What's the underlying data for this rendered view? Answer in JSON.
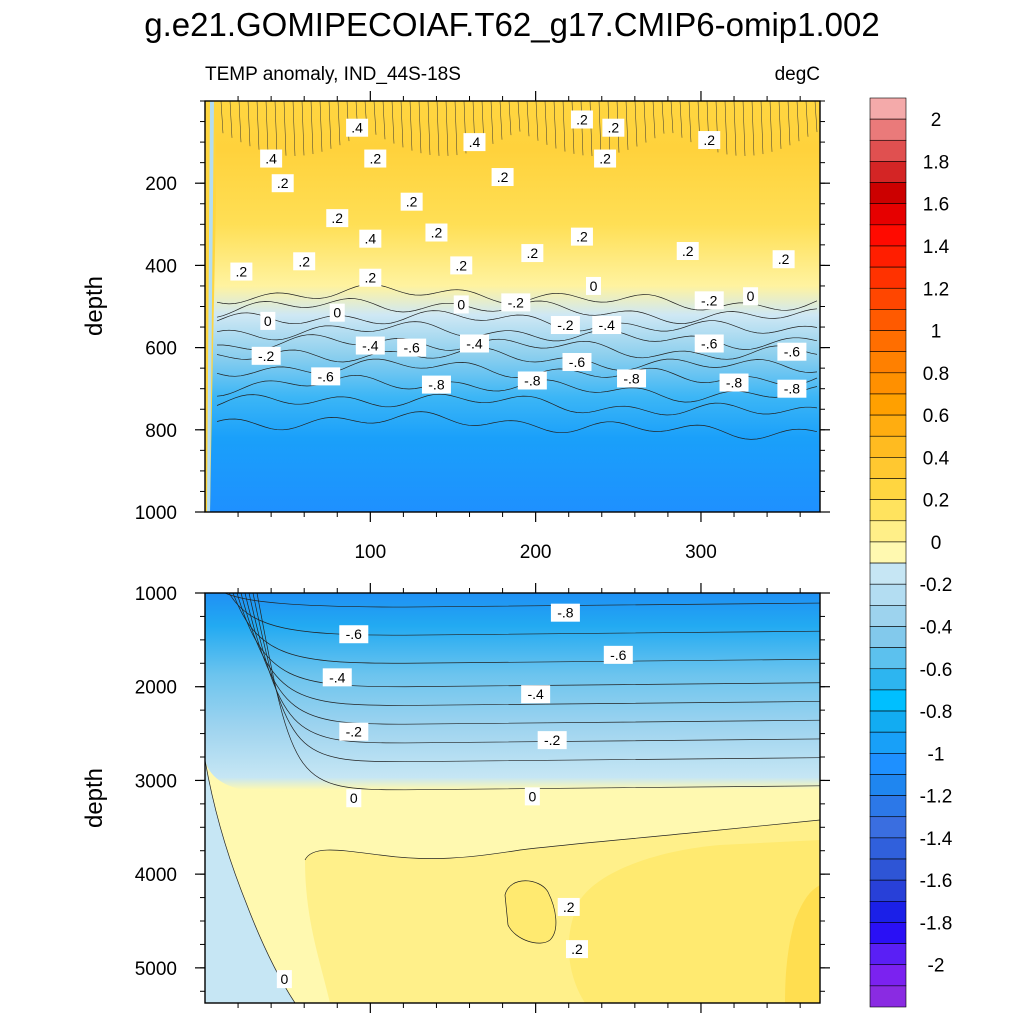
{
  "chart_data": {
    "type": "heatmap",
    "title": "g.e21.GOMIPECOIAF.T62_g17.CMIP6-omip1.002",
    "subtitle_left": "TEMP anomaly, IND_44S-18S",
    "subtitle_right": "degC",
    "x_range": [
      0,
      372
    ],
    "x_ticks": [
      "100",
      "200",
      "300"
    ],
    "x_tick_values": [
      100,
      200,
      300
    ],
    "panels": [
      {
        "name": "upper",
        "ylabel": "depth",
        "y_range": [
          0,
          1000
        ],
        "y_ticks": [
          "200",
          "400",
          "600",
          "800",
          "1000"
        ],
        "y_tick_values": [
          200,
          400,
          600,
          800,
          1000
        ],
        "contour_labels": [
          {
            "text": ".4",
            "x": 92,
            "y": 65
          },
          {
            "text": ".2",
            "x": 103,
            "y": 140
          },
          {
            "text": ".4",
            "x": 163,
            "y": 100
          },
          {
            "text": ".2",
            "x": 228,
            "y": 45
          },
          {
            "text": ".2",
            "x": 247,
            "y": 65
          },
          {
            "text": ".2",
            "x": 305,
            "y": 95
          },
          {
            "text": ".4",
            "x": 40,
            "y": 140
          },
          {
            "text": ".2",
            "x": 47,
            "y": 200
          },
          {
            "text": ".2",
            "x": 80,
            "y": 285
          },
          {
            "text": ".2",
            "x": 125,
            "y": 245
          },
          {
            "text": ".2",
            "x": 180,
            "y": 185
          },
          {
            "text": ".2",
            "x": 242,
            "y": 140
          },
          {
            "text": ".2",
            "x": 140,
            "y": 320
          },
          {
            "text": ".4",
            "x": 100,
            "y": 335
          },
          {
            "text": ".2",
            "x": 22,
            "y": 415
          },
          {
            "text": ".2",
            "x": 60,
            "y": 390
          },
          {
            "text": ".2",
            "x": 100,
            "y": 430
          },
          {
            "text": ".2",
            "x": 155,
            "y": 400
          },
          {
            "text": ".2",
            "x": 198,
            "y": 370
          },
          {
            "text": ".2",
            "x": 228,
            "y": 330
          },
          {
            "text": ".2",
            "x": 292,
            "y": 365
          },
          {
            "text": ".2",
            "x": 350,
            "y": 385
          },
          {
            "text": "0",
            "x": 38,
            "y": 535
          },
          {
            "text": "0",
            "x": 80,
            "y": 515
          },
          {
            "text": "0",
            "x": 155,
            "y": 495
          },
          {
            "text": "0",
            "x": 235,
            "y": 450
          },
          {
            "text": "0",
            "x": 330,
            "y": 475
          },
          {
            "text": "-.2",
            "x": 188,
            "y": 490
          },
          {
            "text": "-.2",
            "x": 37,
            "y": 620
          },
          {
            "text": "-.2",
            "x": 218,
            "y": 545
          },
          {
            "text": "-.2",
            "x": 305,
            "y": 485
          },
          {
            "text": "-.4",
            "x": 100,
            "y": 595
          },
          {
            "text": "-.4",
            "x": 163,
            "y": 590
          },
          {
            "text": "-.4",
            "x": 243,
            "y": 545
          },
          {
            "text": "-.6",
            "x": 125,
            "y": 600
          },
          {
            "text": "-.6",
            "x": 73,
            "y": 670
          },
          {
            "text": "-.6",
            "x": 225,
            "y": 635
          },
          {
            "text": "-.6",
            "x": 305,
            "y": 590
          },
          {
            "text": "-.6",
            "x": 355,
            "y": 610
          },
          {
            "text": "-.8",
            "x": 140,
            "y": 690
          },
          {
            "text": "-.8",
            "x": 198,
            "y": 680
          },
          {
            "text": "-.8",
            "x": 258,
            "y": 675
          },
          {
            "text": "-.8",
            "x": 320,
            "y": 685
          },
          {
            "text": "-.8",
            "x": 355,
            "y": 700
          }
        ]
      },
      {
        "name": "lower",
        "ylabel": "depth",
        "y_range": [
          1000,
          5375
        ],
        "y_ticks": [
          "1000",
          "2000",
          "3000",
          "4000",
          "5000"
        ],
        "y_tick_values": [
          1000,
          2000,
          3000,
          4000,
          5000
        ],
        "contour_labels": [
          {
            "text": "-.8",
            "x": 218,
            "y": 1210
          },
          {
            "text": "-.6",
            "x": 90,
            "y": 1440
          },
          {
            "text": "-.6",
            "x": 250,
            "y": 1660
          },
          {
            "text": "-.4",
            "x": 80,
            "y": 1900
          },
          {
            "text": "-.4",
            "x": 200,
            "y": 2080
          },
          {
            "text": "-.2",
            "x": 90,
            "y": 2480
          },
          {
            "text": "-.2",
            "x": 210,
            "y": 2570
          },
          {
            "text": "0",
            "x": 90,
            "y": 3190
          },
          {
            "text": "0",
            "x": 198,
            "y": 3170
          },
          {
            "text": ".2",
            "x": 220,
            "y": 4350
          },
          {
            "text": ".2",
            "x": 225,
            "y": 4800
          },
          {
            "text": "0",
            "x": 48,
            "y": 5120
          }
        ]
      }
    ],
    "colorbar": {
      "levels": [
        -2.1,
        -2,
        -1.9,
        -1.8,
        -1.7,
        -1.6,
        -1.5,
        -1.4,
        -1.3,
        -1.2,
        -1.1,
        -1,
        -0.9,
        -0.8,
        -0.7,
        -0.6,
        -0.5,
        -0.4,
        -0.3,
        -0.2,
        -0.1,
        0,
        0.1,
        0.2,
        0.3,
        0.4,
        0.5,
        0.6,
        0.7,
        0.8,
        0.9,
        1,
        1.1,
        1.2,
        1.3,
        1.4,
        1.5,
        1.6,
        1.7,
        1.8,
        1.9,
        2,
        2.1
      ],
      "colors": [
        "#8a2be2",
        "#7b22f0",
        "#5a1ff5",
        "#2a10f5",
        "#1b20e8",
        "#2840d8",
        "#2e55d6",
        "#3060dc",
        "#3a6ee0",
        "#2c78e8",
        "#1f86f0",
        "#1e90ff",
        "#18a0f8",
        "#12acf2",
        "#00bfff",
        "#2db5f0",
        "#5cc1ee",
        "#82c9ec",
        "#9dd3ee",
        "#b3ddf2",
        "#c6e6f4",
        "#fff9b0",
        "#ffef88",
        "#ffe35e",
        "#ffd640",
        "#ffc830",
        "#ffbb20",
        "#ffad10",
        "#ffa000",
        "#ff9000",
        "#ff8000",
        "#ff6e00",
        "#ff5a00",
        "#ff4600",
        "#ff3200",
        "#ff1e00",
        "#ff0a00",
        "#e60000",
        "#cc0000",
        "#d42525",
        "#e05050",
        "#ea7a7a",
        "#f4aaaa"
      ],
      "tick_labels": [
        "2",
        "1.8",
        "1.6",
        "1.4",
        "1.2",
        "1",
        "0.8",
        "0.6",
        "0.4",
        "0.2",
        "0",
        "-0.2",
        "-0.4",
        "-0.6",
        "-0.8",
        "-1",
        "-1.2",
        "-1.4",
        "-1.6",
        "-1.8",
        "-2"
      ]
    }
  }
}
